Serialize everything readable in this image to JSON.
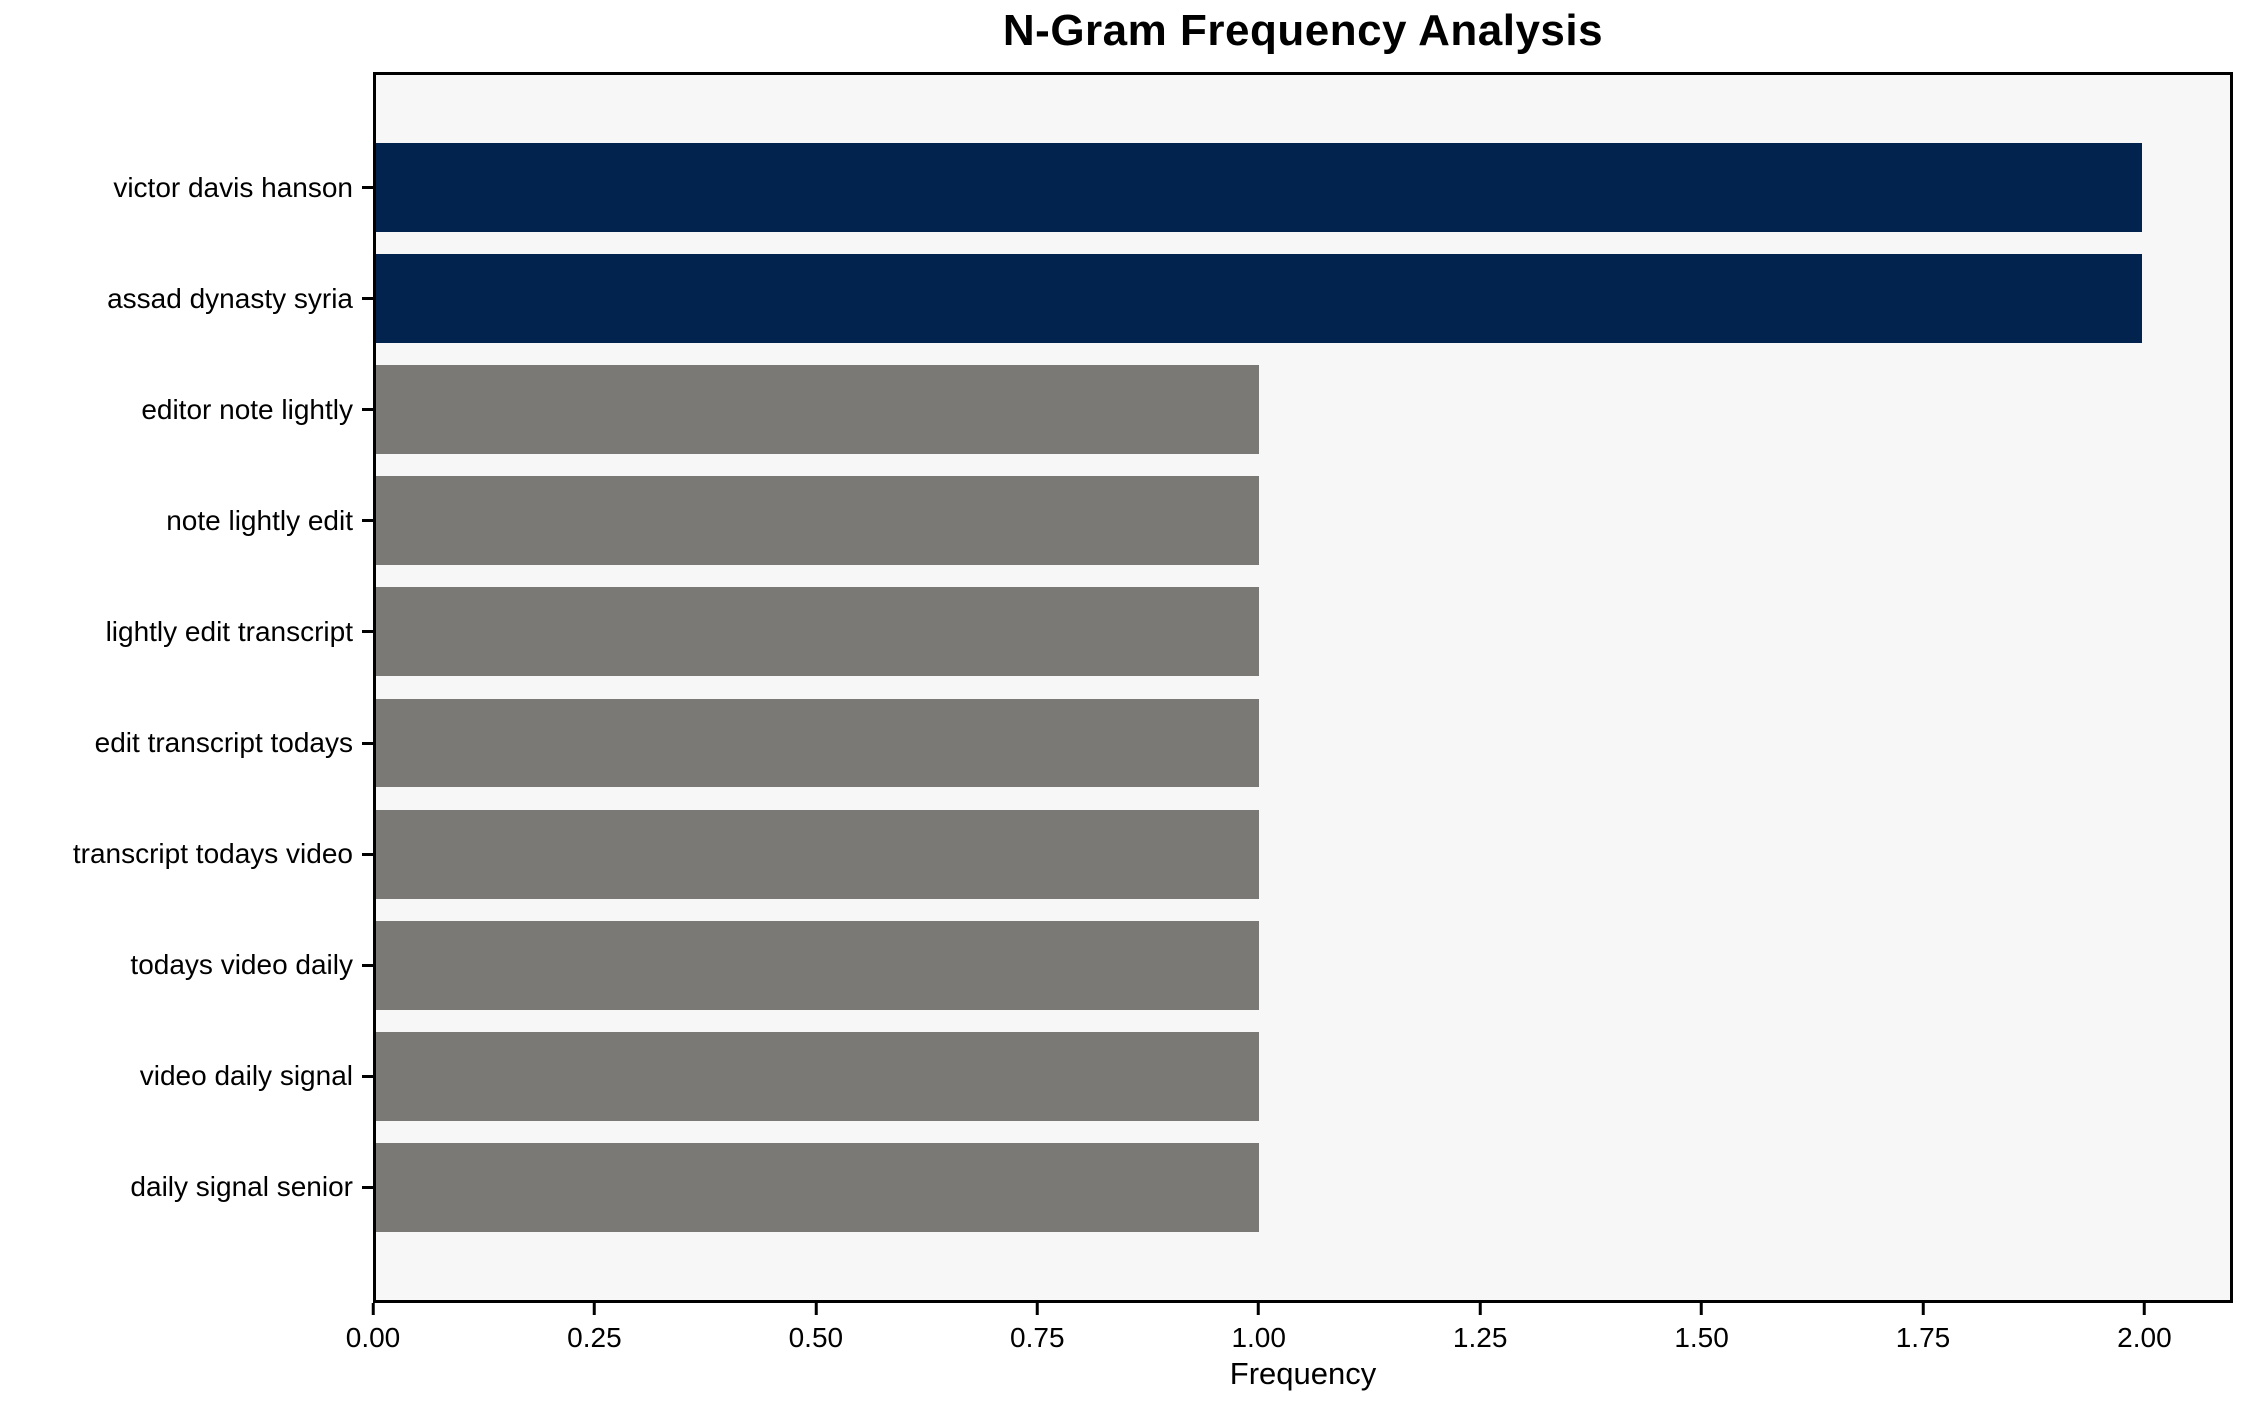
{
  "chart_data": {
    "type": "bar",
    "orientation": "horizontal",
    "title": "N-Gram Frequency Analysis",
    "xlabel": "Frequency",
    "ylabel": "",
    "categories": [
      "victor davis hanson",
      "assad dynasty syria",
      "editor note lightly",
      "note lightly edit",
      "lightly edit transcript",
      "edit transcript todays",
      "transcript todays video",
      "todays video daily",
      "video daily signal",
      "daily signal senior"
    ],
    "values": [
      2,
      2,
      1,
      1,
      1,
      1,
      1,
      1,
      1,
      1
    ],
    "xlim": [
      0,
      2.1
    ],
    "xtick_labels": [
      "0.00",
      "0.25",
      "0.50",
      "0.75",
      "1.00",
      "1.25",
      "1.50",
      "1.75",
      "2.00"
    ],
    "xtick_values": [
      0,
      0.25,
      0.5,
      0.75,
      1.0,
      1.25,
      1.5,
      1.75,
      2.0
    ],
    "grid": false,
    "legend": null,
    "highlight_min_value": 2,
    "colors": {
      "highlight_bar": "#01234e",
      "default_bar": "#7b7975",
      "plot_background": "#f7f7f7",
      "figure_background": "#ffffff",
      "spine": "#000000",
      "text": "#000000"
    }
  }
}
